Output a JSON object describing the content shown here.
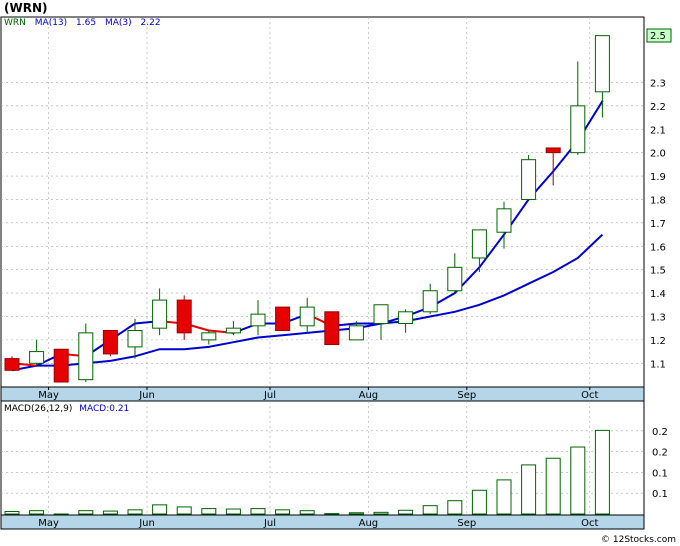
{
  "chart_data": {
    "type": "candlestick",
    "title": "(WRN)",
    "credit": "© 12Stocks.com",
    "price_panel": {
      "legend": [
        {
          "text": "WRN",
          "color": "#006400"
        },
        {
          "text": "MA(13)",
          "color": "#0000cc"
        },
        {
          "text": "1.65",
          "color": "#0000cc"
        },
        {
          "text": "MA(3)",
          "color": "#0000cc"
        },
        {
          "text": "2.22",
          "color": "#0000cc"
        }
      ],
      "last_price_label": "2.5",
      "ylim": [
        1.0,
        2.55
      ],
      "yticks": [
        "1.1",
        "1.2",
        "1.3",
        "1.4",
        "1.5",
        "1.6",
        "1.7",
        "1.8",
        "1.9",
        "2.0",
        "2.1",
        "2.2",
        "2.3"
      ],
      "grid": true,
      "candles": [
        {
          "o": 1.12,
          "h": 1.13,
          "l": 1.07,
          "c": 1.07
        },
        {
          "o": 1.1,
          "h": 1.2,
          "l": 1.09,
          "c": 1.15
        },
        {
          "o": 1.16,
          "h": 1.16,
          "l": 1.02,
          "c": 1.02
        },
        {
          "o": 1.03,
          "h": 1.27,
          "l": 1.02,
          "c": 1.23
        },
        {
          "o": 1.24,
          "h": 1.24,
          "l": 1.13,
          "c": 1.14
        },
        {
          "o": 1.17,
          "h": 1.29,
          "l": 1.12,
          "c": 1.24
        },
        {
          "o": 1.25,
          "h": 1.42,
          "l": 1.22,
          "c": 1.37
        },
        {
          "o": 1.37,
          "h": 1.39,
          "l": 1.2,
          "c": 1.23
        },
        {
          "o": 1.2,
          "h": 1.24,
          "l": 1.18,
          "c": 1.23
        },
        {
          "o": 1.23,
          "h": 1.28,
          "l": 1.22,
          "c": 1.25
        },
        {
          "o": 1.26,
          "h": 1.37,
          "l": 1.22,
          "c": 1.31
        },
        {
          "o": 1.34,
          "h": 1.34,
          "l": 1.24,
          "c": 1.24
        },
        {
          "o": 1.26,
          "h": 1.38,
          "l": 1.23,
          "c": 1.34
        },
        {
          "o": 1.32,
          "h": 1.32,
          "l": 1.18,
          "c": 1.18
        },
        {
          "o": 1.2,
          "h": 1.28,
          "l": 1.2,
          "c": 1.26
        },
        {
          "o": 1.27,
          "h": 1.35,
          "l": 1.2,
          "c": 1.35
        },
        {
          "o": 1.27,
          "h": 1.33,
          "l": 1.23,
          "c": 1.32
        },
        {
          "o": 1.32,
          "h": 1.44,
          "l": 1.31,
          "c": 1.41
        },
        {
          "o": 1.41,
          "h": 1.57,
          "l": 1.4,
          "c": 1.51
        },
        {
          "o": 1.55,
          "h": 1.66,
          "l": 1.49,
          "c": 1.67
        },
        {
          "o": 1.66,
          "h": 1.79,
          "l": 1.59,
          "c": 1.76
        },
        {
          "o": 1.8,
          "h": 1.99,
          "l": 1.8,
          "c": 1.97
        },
        {
          "o": 2.02,
          "h": 2.02,
          "l": 1.86,
          "c": 2.0
        },
        {
          "o": 2.0,
          "h": 2.39,
          "l": 1.99,
          "c": 2.2
        },
        {
          "o": 2.26,
          "h": 2.5,
          "l": 2.15,
          "c": 2.5
        }
      ],
      "ma3": [
        1.1,
        1.09,
        1.14,
        1.13,
        1.2,
        1.27,
        1.28,
        1.27,
        1.24,
        1.23,
        1.27,
        1.27,
        1.31,
        1.26,
        1.27,
        1.27,
        1.3,
        1.34,
        1.4,
        1.51,
        1.65,
        1.8,
        1.92,
        2.05,
        2.22
      ],
      "ma13": [
        1.07,
        1.09,
        1.09,
        1.1,
        1.11,
        1.13,
        1.16,
        1.16,
        1.17,
        1.19,
        1.21,
        1.22,
        1.23,
        1.24,
        1.25,
        1.27,
        1.28,
        1.3,
        1.32,
        1.35,
        1.39,
        1.44,
        1.49,
        1.55,
        1.65
      ],
      "ma3_down_color": "#e60000",
      "ma3_up_color": "#0000cc",
      "ma13_color": "#0000cc",
      "up_candle_fill": "#ffffff",
      "up_candle_stroke": "#006400",
      "down_candle_fill": "#e60000"
    },
    "macd_panel": {
      "legend": [
        {
          "text": "MACD(26,12,9)",
          "color": "#000000"
        },
        {
          "text": "MACD:0.21",
          "color": "#0000cc"
        }
      ],
      "ylim": [
        0.0,
        0.25
      ],
      "ytick_values": [
        0.05,
        0.1,
        0.15,
        0.2
      ],
      "yticks": [
        "0.1",
        "0.1",
        "0.2",
        "0.2"
      ],
      "histogram": [
        0.006,
        0.008,
        0.0,
        0.008,
        0.007,
        0.01,
        0.022,
        0.017,
        0.013,
        0.012,
        0.013,
        0.01,
        0.008,
        0.001,
        0.003,
        0.004,
        0.009,
        0.02,
        0.032,
        0.057,
        0.082,
        0.118,
        0.134,
        0.161,
        0.201
      ],
      "bar_stroke": "#006400"
    },
    "x_axis": {
      "labels": [
        {
          "text": "May",
          "index": 1
        },
        {
          "text": "Jun",
          "index": 5
        },
        {
          "text": "Jul",
          "index": 10
        },
        {
          "text": "Aug",
          "index": 14
        },
        {
          "text": "Sep",
          "index": 18
        },
        {
          "text": "Oct",
          "index": 23
        }
      ]
    },
    "colors": {
      "axis_band": "#b4d6e8",
      "grid": "#aaaaaa",
      "last_price_box": "#c8ffc8"
    }
  }
}
